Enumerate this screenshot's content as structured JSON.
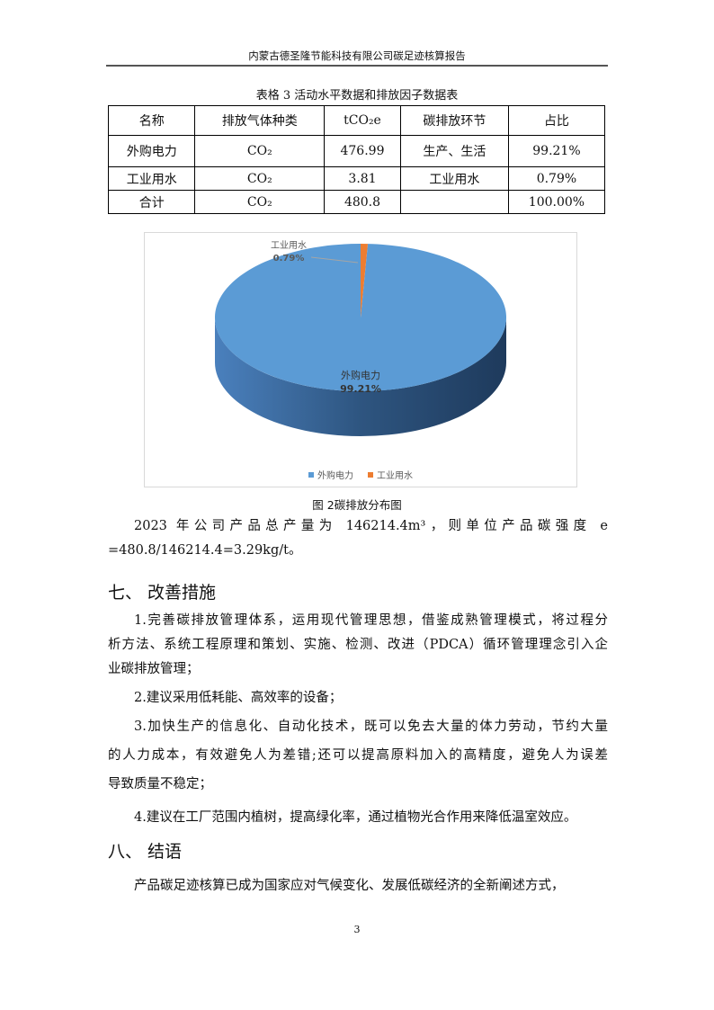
{
  "header": "内蒙古德圣隆节能科技有限公司碳足迹核算报告",
  "table": {
    "caption": "表格 3 活动水平数据和排放因子数据表",
    "headers": [
      "名称",
      "排放气体种类",
      "tCO₂e",
      "碳排放环节",
      "占比"
    ],
    "rows": [
      [
        "外购电力",
        "CO₂",
        "476.99",
        "生产、生活",
        "99.21%"
      ],
      [
        "工业用水",
        "CO₂",
        "3.81",
        "工业用水",
        "0.79%"
      ],
      [
        "合计",
        "CO₂",
        "480.8",
        "",
        "100.00%"
      ]
    ]
  },
  "chart_data": {
    "type": "pie",
    "categories": [
      "外购电力",
      "工业用水"
    ],
    "values": [
      99.21,
      0.79
    ],
    "data_labels": [
      "99.21%",
      "0.79%"
    ],
    "colors": [
      "#5b9bd5",
      "#ed7d31"
    ],
    "legend": "bottom",
    "style": "3d"
  },
  "figure_caption": "图 2碳排放分布图",
  "paragraphs": {
    "p1a": "2023 年公司产品总产量为 146214.4m³，则单位产品碳强度 e",
    "p1b": "=480.8/146214.4=3.29kg/t。"
  },
  "section7": {
    "title": "七、  改善措施",
    "items": [
      "1.完善碳排放管理体系，运用现代管理思想，借鉴成熟管理模式，将过程分",
      "析方法、系统工程原理和策划、实施、检测、改进（PDCA）循环管理理念引入企",
      "业碳排放管理；",
      "2.建议采用低耗能、高效率的设备；",
      "3.加快生产的信息化、自动化技术，既可以免去大量的体力劳动，节约大量",
      "的人力成本，有效避免人为差错;还可以提高原料加入的高精度，避免人为误差",
      "导致质量不稳定；",
      "4.建议在工厂范围内植树，提高绿化率，通过植物光合作用来降低温室效应。"
    ]
  },
  "section8": {
    "title": "八、  结语",
    "text": "产品碳足迹核算已成为国家应对气候变化、发展低碳经济的全新阐述方式，"
  },
  "page_number": "3"
}
